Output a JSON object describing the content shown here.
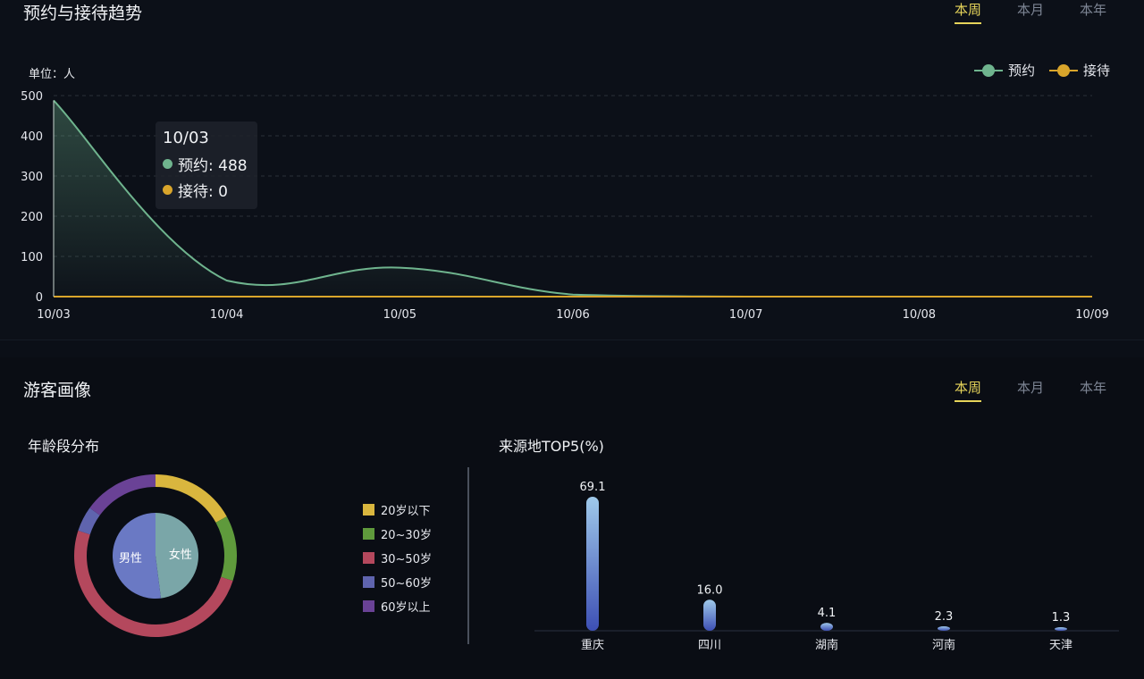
{
  "trend_panel": {
    "title": "预约与接待趋势",
    "tabs": [
      {
        "label": "本周",
        "active": true
      },
      {
        "label": "本月",
        "active": false
      },
      {
        "label": "本年",
        "active": false
      }
    ],
    "unit_label": "单位：人",
    "tooltip": {
      "title": "10/03",
      "rows": [
        {
          "label": "预约: 488",
          "color": "#6fb48e"
        },
        {
          "label": "接待: 0",
          "color": "#d9a52b"
        }
      ]
    }
  },
  "portrait_panel": {
    "title": "游客画像",
    "tabs": [
      {
        "label": "本周",
        "active": true
      },
      {
        "label": "本月",
        "active": false
      },
      {
        "label": "本年",
        "active": false
      }
    ],
    "age_title": "年龄段分布",
    "origin_title": "来源地TOP5(%)"
  },
  "chart_data": [
    {
      "type": "line",
      "x": [
        "10/03",
        "10/04",
        "10/05",
        "10/06",
        "10/07",
        "10/08",
        "10/09"
      ],
      "ylim": [
        0,
        500
      ],
      "yticks": [
        0,
        100,
        200,
        300,
        400,
        500
      ],
      "grid": true,
      "legend_position": "top-right",
      "series": [
        {
          "name": "预约",
          "color": "#6fb48e",
          "values": [
            488,
            40,
            72,
            5,
            0,
            0,
            0
          ]
        },
        {
          "name": "接待",
          "color": "#d9a52b",
          "values": [
            0,
            0,
            0,
            0,
            0,
            0,
            0
          ]
        }
      ]
    },
    {
      "type": "pie",
      "inner": {
        "slices": [
          {
            "label": "女性",
            "value": 48,
            "color": "#7aa6a8"
          },
          {
            "label": "男性",
            "value": 52,
            "color": "#6a79c4"
          }
        ]
      },
      "outer": {
        "slices": [
          {
            "label": "20岁以下",
            "value": 17,
            "color": "#d9b63e"
          },
          {
            "label": "20~30岁",
            "value": 13,
            "color": "#5f9a3c"
          },
          {
            "label": "30~50岁",
            "value": 50,
            "color": "#b4485d"
          },
          {
            "label": "50~60岁",
            "value": 5,
            "color": "#5f64ae"
          },
          {
            "label": "60岁以上",
            "value": 15,
            "color": "#6a4296"
          }
        ]
      },
      "legend_position": "right"
    },
    {
      "type": "bar",
      "categories": [
        "重庆",
        "四川",
        "湖南",
        "河南",
        "天津"
      ],
      "values": [
        69.1,
        16.0,
        4.1,
        2.3,
        1.3
      ],
      "labels": [
        "69.1",
        "16.0",
        "4.1",
        "2.3",
        "1.3"
      ],
      "ylim": [
        0,
        70
      ]
    }
  ]
}
